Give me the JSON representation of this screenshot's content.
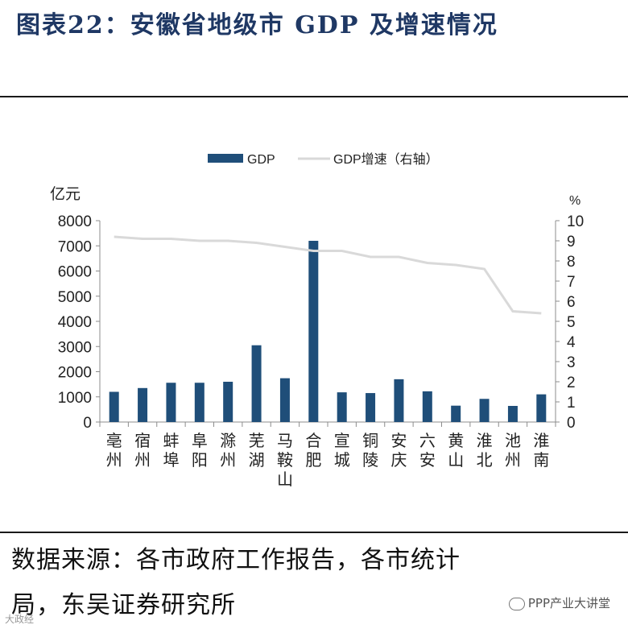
{
  "title": "图表22：安徽省地级市 GDP 及增速情况",
  "source_line1": "数据来源：各市政府工作报告，各市统计",
  "source_line2": "局，东吴证券研究所",
  "watermark_right": "PPP产业大讲堂",
  "watermark_left": "大政经",
  "chart_data": {
    "type": "bar",
    "categories": [
      "亳州",
      "宿州",
      "蚌埠",
      "阜阳",
      "滁州",
      "芜湖",
      "马鞍山",
      "合肥",
      "宣城",
      "铜陵",
      "安庆",
      "六安",
      "黄山",
      "淮北",
      "池州",
      "淮南"
    ],
    "series": [
      {
        "name": "GDP",
        "type": "bar",
        "axis": "left",
        "color": "#1f4e79",
        "values": [
          1200,
          1350,
          1560,
          1560,
          1600,
          3050,
          1740,
          7200,
          1180,
          1150,
          1700,
          1220,
          650,
          920,
          640,
          1100
        ]
      },
      {
        "name": "GDP增速（右轴）",
        "type": "line",
        "axis": "right",
        "color": "#d9d9d9",
        "values": [
          9.2,
          9.1,
          9.1,
          9.0,
          9.0,
          8.9,
          8.7,
          8.5,
          8.5,
          8.2,
          8.2,
          7.9,
          7.8,
          7.6,
          5.5,
          5.4
        ]
      }
    ],
    "ylabel": "亿元",
    "y2label": "%",
    "ylim": [
      0,
      8000
    ],
    "y2lim": [
      0,
      10
    ],
    "yticks": [
      "0",
      "1000",
      "2000",
      "3000",
      "4000",
      "5000",
      "6000",
      "7000",
      "8000"
    ],
    "y2ticks": [
      "0",
      "1",
      "2",
      "3",
      "4",
      "5",
      "6",
      "7",
      "8",
      "9",
      "10"
    ],
    "legend_position": "top-center",
    "grid": false
  }
}
